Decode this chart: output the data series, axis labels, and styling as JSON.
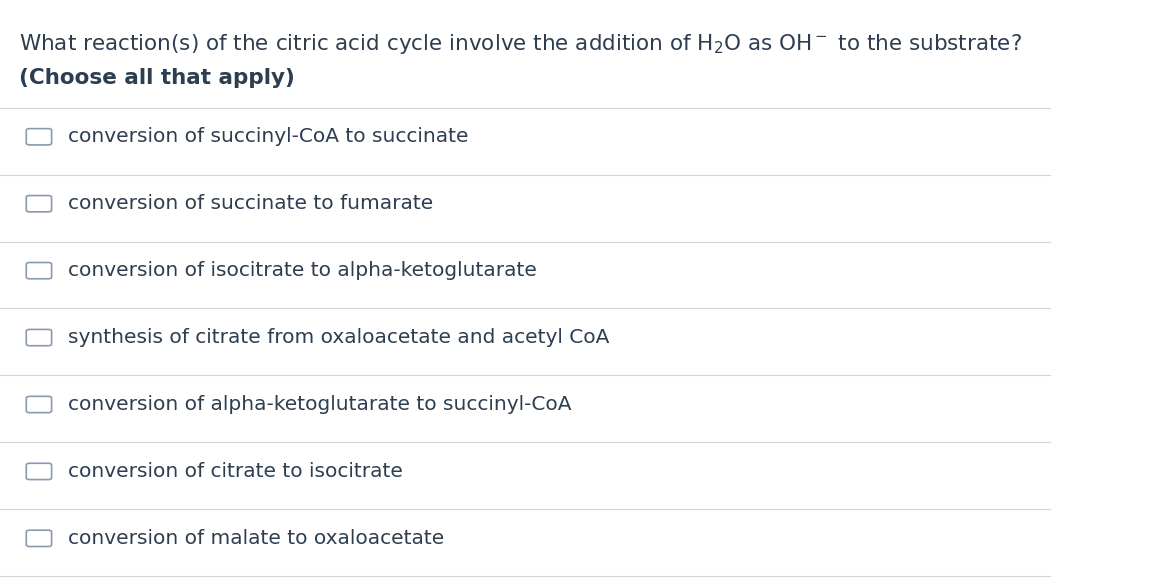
{
  "background_color": "#ffffff",
  "title_line1": "What reaction(s) of the citric acid cycle involve the addition of H₂O as OH⁻ to the substrate?",
  "title_line2": "(Choose all that apply)",
  "title_color": "#2d3e50",
  "title_fontsize": 15.5,
  "subtitle_fontsize": 15.5,
  "option_fontsize": 14.5,
  "option_color": "#2d3e50",
  "divider_color": "#d0d5db",
  "checkbox_color": "#8a9ab0",
  "options": [
    "conversion of succinyl-CoA to succinate",
    "conversion of succinate to fumarate",
    "conversion of isocitrate to alpha-ketoglutarate",
    "synthesis of citrate from oxaloacetate and acetyl CoA",
    "conversion of alpha-ketoglutarate to succinyl-CoA",
    "conversion of citrate to isocitrate",
    "conversion of malate to oxaloacetate"
  ],
  "figsize": [
    11.66,
    5.82
  ],
  "dpi": 100
}
